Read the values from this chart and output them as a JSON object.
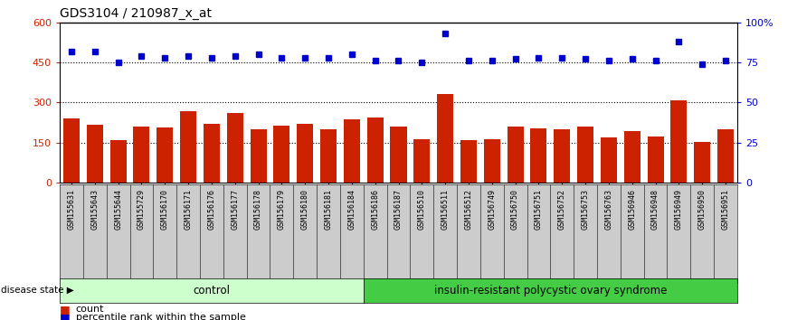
{
  "title": "GDS3104 / 210987_x_at",
  "samples": [
    "GSM155631",
    "GSM155643",
    "GSM155644",
    "GSM155729",
    "GSM156170",
    "GSM156171",
    "GSM156176",
    "GSM156177",
    "GSM156178",
    "GSM156179",
    "GSM156180",
    "GSM156181",
    "GSM156184",
    "GSM156186",
    "GSM156187",
    "GSM156510",
    "GSM156511",
    "GSM156512",
    "GSM156749",
    "GSM156750",
    "GSM156751",
    "GSM156752",
    "GSM156753",
    "GSM156763",
    "GSM156946",
    "GSM156948",
    "GSM156949",
    "GSM156950",
    "GSM156951"
  ],
  "counts": [
    240,
    215,
    158,
    208,
    205,
    268,
    218,
    260,
    200,
    213,
    218,
    200,
    235,
    243,
    208,
    162,
    332,
    160,
    162,
    208,
    203,
    198,
    208,
    170,
    193,
    173,
    308,
    152,
    198
  ],
  "percentile_ranks_pct": [
    82,
    82,
    75,
    79,
    78,
    79,
    78,
    79,
    80,
    78,
    78,
    78,
    80,
    76,
    76,
    75,
    93,
    76,
    76,
    77,
    78,
    78,
    77,
    76,
    77,
    76,
    88,
    74,
    76
  ],
  "control_count": 13,
  "disease_state_label": "disease state",
  "control_label": "control",
  "disease_label": "insulin-resistant polycystic ovary syndrome",
  "ylim_left": [
    0,
    600
  ],
  "left_yticks": [
    0,
    150,
    300,
    450,
    600
  ],
  "right_yticks": [
    0,
    25,
    50,
    75,
    100
  ],
  "bar_color": "#cc2200",
  "dot_color": "#0000cc",
  "control_bg": "#ccffcc",
  "disease_bg": "#44cc44",
  "tick_label_color_left": "#cc2200",
  "tick_label_color_right": "#0000cc",
  "xtick_bg": "#cccccc"
}
